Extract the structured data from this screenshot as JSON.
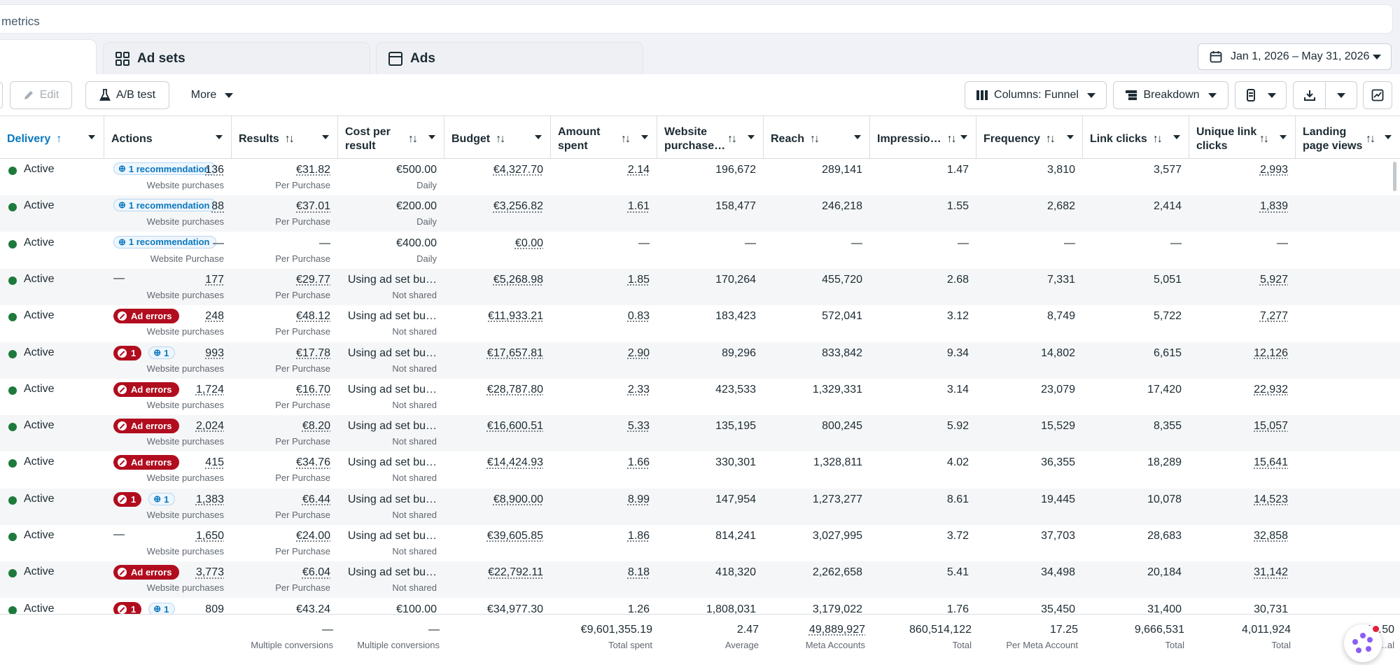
{
  "search": {
    "text": "metrics"
  },
  "tabs": [
    {
      "label": ""
    },
    {
      "label": "Ad sets"
    },
    {
      "label": "Ads"
    }
  ],
  "date_range": "Jan 1, 2026 – May 31, 2026",
  "toolbar": {
    "edit": "Edit",
    "ab_test": "A/B test",
    "more": "More",
    "columns": "Columns: Funnel",
    "breakdown": "Breakdown"
  },
  "columns": {
    "delivery": "Delivery",
    "actions": "Actions",
    "results": "Results",
    "cost_per_result": "Cost per result",
    "budget": "Budget",
    "amount_spent": "Amount spent",
    "website_purchase": "Website purchase…",
    "reach": "Reach",
    "impressions": "Impressio…",
    "frequency": "Frequency",
    "link_clicks": "Link clicks",
    "unique_link_clicks": "Unique link clicks",
    "landing_page_views": "Landing page views"
  },
  "rows": [
    {
      "delivery": "Active",
      "action": "rec",
      "rec_label": "1 recommendation",
      "results": "136",
      "results_sub": "Website purchases",
      "cpr": "€31.82",
      "cpr_sub": "Per Purchase",
      "budget": "€500.00",
      "budget_sub": "Daily",
      "spent": "€4,327.70",
      "wp": "2.14",
      "reach": "196,672",
      "impr": "289,141",
      "freq": "1.47",
      "clicks": "3,810",
      "uclicks": "3,577",
      "lpv": "2,993"
    },
    {
      "delivery": "Active",
      "action": "rec",
      "rec_label": "1 recommendation",
      "results": "88",
      "results_sub": "Website purchases",
      "cpr": "€37.01",
      "cpr_sub": "Per Purchase",
      "budget": "€200.00",
      "budget_sub": "Daily",
      "spent": "€3,256.82",
      "wp": "1.61",
      "reach": "158,477",
      "impr": "246,218",
      "freq": "1.55",
      "clicks": "2,682",
      "uclicks": "2,414",
      "lpv": "1,839"
    },
    {
      "delivery": "Active",
      "action": "rec",
      "rec_label": "1 recommendation",
      "results": "—",
      "results_sub": "Website Purchase",
      "cpr": "—",
      "cpr_sub": "Per Purchase",
      "budget": "€400.00",
      "budget_sub": "Daily",
      "spent": "€0.00",
      "wp": "—",
      "reach": "—",
      "impr": "—",
      "freq": "—",
      "clicks": "—",
      "uclicks": "—",
      "lpv": "—"
    },
    {
      "delivery": "Active",
      "action": "none",
      "none_label": "—",
      "results": "177",
      "results_sub": "Website purchases",
      "cpr": "€29.77",
      "cpr_sub": "Per Purchase",
      "budget": "Using ad set bu…",
      "budget_sub": "Not shared",
      "spent": "€5,268.98",
      "wp": "1.85",
      "reach": "170,264",
      "impr": "455,720",
      "freq": "2.68",
      "clicks": "7,331",
      "uclicks": "5,051",
      "lpv": "5,927"
    },
    {
      "delivery": "Active",
      "action": "err",
      "err_label": "Ad errors",
      "results": "248",
      "results_sub": "Website purchases",
      "cpr": "€48.12",
      "cpr_sub": "Per Purchase",
      "budget": "Using ad set bu…",
      "budget_sub": "Not shared",
      "spent": "€11,933.21",
      "wp": "0.83",
      "reach": "183,423",
      "impr": "572,041",
      "freq": "3.12",
      "clicks": "8,749",
      "uclicks": "5,722",
      "lpv": "7,277"
    },
    {
      "delivery": "Active",
      "action": "both",
      "err_count": "1",
      "rec_count": "1",
      "results": "993",
      "results_sub": "Website purchases",
      "cpr": "€17.78",
      "cpr_sub": "Per Purchase",
      "budget": "Using ad set bu…",
      "budget_sub": "Not shared",
      "spent": "€17,657.81",
      "wp": "2.90",
      "reach": "89,296",
      "impr": "833,842",
      "freq": "9.34",
      "clicks": "14,802",
      "uclicks": "6,615",
      "lpv": "12,126"
    },
    {
      "delivery": "Active",
      "action": "err",
      "err_label": "Ad errors",
      "results": "1,724",
      "results_sub": "Website purchases",
      "cpr": "€16.70",
      "cpr_sub": "Per Purchase",
      "budget": "Using ad set bu…",
      "budget_sub": "Not shared",
      "spent": "€28,787.80",
      "wp": "2.33",
      "reach": "423,533",
      "impr": "1,329,331",
      "freq": "3.14",
      "clicks": "23,079",
      "uclicks": "17,420",
      "lpv": "22,932"
    },
    {
      "delivery": "Active",
      "action": "err",
      "err_label": "Ad errors",
      "results": "2,024",
      "results_sub": "Website purchases",
      "cpr": "€8.20",
      "cpr_sub": "Per Purchase",
      "budget": "Using ad set bu…",
      "budget_sub": "Not shared",
      "spent": "€16,600.51",
      "wp": "5.33",
      "reach": "135,195",
      "impr": "800,245",
      "freq": "5.92",
      "clicks": "15,529",
      "uclicks": "8,355",
      "lpv": "15,057"
    },
    {
      "delivery": "Active",
      "action": "err",
      "err_label": "Ad errors",
      "results": "415",
      "results_sub": "Website purchases",
      "cpr": "€34.76",
      "cpr_sub": "Per Purchase",
      "budget": "Using ad set bu…",
      "budget_sub": "Not shared",
      "spent": "€14,424.93",
      "wp": "1.66",
      "reach": "330,301",
      "impr": "1,328,811",
      "freq": "4.02",
      "clicks": "36,355",
      "uclicks": "18,289",
      "lpv": "15,641"
    },
    {
      "delivery": "Active",
      "action": "both",
      "err_count": "1",
      "rec_count": "1",
      "results": "1,383",
      "results_sub": "Website purchases",
      "cpr": "€6.44",
      "cpr_sub": "Per Purchase",
      "budget": "Using ad set bu…",
      "budget_sub": "Not shared",
      "spent": "€8,900.00",
      "wp": "8.99",
      "reach": "147,954",
      "impr": "1,273,277",
      "freq": "8.61",
      "clicks": "19,445",
      "uclicks": "10,078",
      "lpv": "14,523"
    },
    {
      "delivery": "Active",
      "action": "none",
      "none_label": "—",
      "results": "1,650",
      "results_sub": "Website purchases",
      "cpr": "€24.00",
      "cpr_sub": "Per Purchase",
      "budget": "Using ad set bu…",
      "budget_sub": "Not shared",
      "spent": "€39,605.85",
      "wp": "1.86",
      "reach": "814,241",
      "impr": "3,027,995",
      "freq": "3.72",
      "clicks": "37,703",
      "uclicks": "28,683",
      "lpv": "32,858"
    },
    {
      "delivery": "Active",
      "action": "err",
      "err_label": "Ad errors",
      "results": "3,773",
      "results_sub": "Website purchases",
      "cpr": "€6.04",
      "cpr_sub": "Per Purchase",
      "budget": "Using ad set bu…",
      "budget_sub": "Not shared",
      "spent": "€22,792.11",
      "wp": "8.18",
      "reach": "418,320",
      "impr": "2,262,658",
      "freq": "5.41",
      "clicks": "34,498",
      "uclicks": "20,184",
      "lpv": "31,142"
    },
    {
      "delivery": "Active",
      "action": "both",
      "err_count": "1",
      "rec_count": "1",
      "results": "809",
      "results_sub": "",
      "cpr": "€43.24",
      "cpr_sub": "",
      "budget": "€100.00",
      "budget_sub": "",
      "spent": "€34,977.30",
      "wp": "1.26",
      "reach": "1,808,031",
      "impr": "3,179,022",
      "freq": "1.76",
      "clicks": "35,450",
      "uclicks": "31,400",
      "lpv": "30,731"
    }
  ],
  "totals": {
    "results": "—",
    "results_sub": "Multiple conversions",
    "cpr": "—",
    "cpr_sub": "Multiple conversions",
    "spent": "€9,601,355.19",
    "spent_sub": "Total spent",
    "wp": "2.47",
    "wp_sub": "Average",
    "reach": "49,889,927",
    "reach_sub": "Meta Accounts",
    "impr": "860,514,122",
    "impr_sub": "Total",
    "freq": "17.25",
    "freq_sub": "Per Meta Account",
    "clicks": "9,666,531",
    "clicks_sub": "Total",
    "uclicks": "4,011,924",
    "uclicks_sub": "Total",
    "lpv": "7…50",
    "lpv_sub": "…al"
  },
  "colors": {
    "active": "#1e7a3c",
    "error": "#b10d1e",
    "link": "#0a78be"
  }
}
